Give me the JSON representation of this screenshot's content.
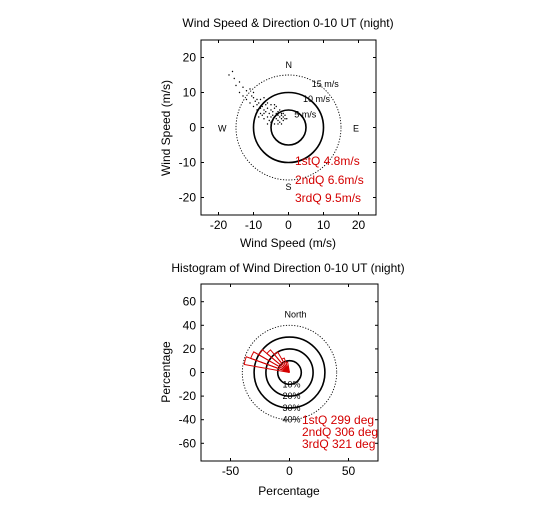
{
  "chart_data": [
    {
      "type": "scatter",
      "title": "Wind Speed & Direction 0-10 UT (night)",
      "xlabel": "Wind Speed (m/s)",
      "ylabel": "Wind Speed (m/s)",
      "xlim": [
        -25,
        25
      ],
      "ylim": [
        -25,
        25
      ],
      "xticks": [
        -20,
        -10,
        0,
        10,
        20
      ],
      "yticks": [
        -20,
        -10,
        0,
        10,
        20
      ],
      "compass": [
        "N",
        "E",
        "S",
        "W"
      ],
      "rings": [
        {
          "radius": 5,
          "label": "5 m/s",
          "style": "solid"
        },
        {
          "radius": 10,
          "label": "10 m/s",
          "style": "solid"
        },
        {
          "radius": 15,
          "label": "15 m/s",
          "style": "dotted"
        }
      ],
      "quartiles": [
        "1stQ 4.8m/s",
        "2ndQ 6.6m/s",
        "3rdQ 9.5m/s"
      ],
      "points": [
        [
          -16,
          16
        ],
        [
          -15.5,
          14
        ],
        [
          -14,
          13
        ],
        [
          -13,
          11.5
        ],
        [
          -12,
          10.5
        ],
        [
          -11,
          11
        ],
        [
          -10.5,
          9
        ],
        [
          -10,
          8.5
        ],
        [
          -9.5,
          7.5
        ],
        [
          -9,
          8
        ],
        [
          -9,
          6.5
        ],
        [
          -8.5,
          7
        ],
        [
          -8,
          5.5
        ],
        [
          -8,
          4
        ],
        [
          -7.5,
          6
        ],
        [
          -7.5,
          3.5
        ],
        [
          -7,
          5
        ],
        [
          -7,
          2.5
        ],
        [
          -6.5,
          4.5
        ],
        [
          -6.5,
          6.5
        ],
        [
          -6,
          3
        ],
        [
          -6,
          5.5
        ],
        [
          -5.5,
          2
        ],
        [
          -5.5,
          4
        ],
        [
          -5,
          5
        ],
        [
          -5,
          3
        ],
        [
          -5,
          1.5
        ],
        [
          -4.5,
          4.5
        ],
        [
          -4.5,
          3.5
        ],
        [
          -4.5,
          2
        ],
        [
          -4,
          3
        ],
        [
          -4,
          5.5
        ],
        [
          -4,
          1
        ],
        [
          -3.5,
          4
        ],
        [
          -3.5,
          2.5
        ],
        [
          -3.5,
          6
        ],
        [
          -3,
          3.5
        ],
        [
          -3,
          2
        ],
        [
          -3,
          4.5
        ],
        [
          -2.5,
          3
        ],
        [
          -2.5,
          1.5
        ],
        [
          -2.5,
          5
        ],
        [
          -2,
          4
        ],
        [
          -2,
          2.5
        ],
        [
          -2,
          3.5
        ],
        [
          -1.5,
          3
        ],
        [
          -1.5,
          2
        ],
        [
          -1,
          2.5
        ],
        [
          -1,
          3.5
        ],
        [
          -0.5,
          2.5
        ],
        [
          -6,
          7
        ],
        [
          -8,
          8
        ],
        [
          -10,
          10
        ],
        [
          -12,
          8
        ],
        [
          -7,
          8.5
        ],
        [
          -5,
          6.5
        ],
        [
          -9,
          5
        ],
        [
          -11,
          7
        ],
        [
          -3,
          1
        ],
        [
          -4,
          6.5
        ],
        [
          -6,
          1
        ],
        [
          -2,
          1
        ],
        [
          -1.5,
          4
        ],
        [
          -8.5,
          3
        ],
        [
          -14,
          10
        ],
        [
          -15,
          12
        ],
        [
          -13,
          9
        ],
        [
          -17,
          15
        ],
        [
          -10,
          6
        ],
        [
          -7,
          4
        ]
      ]
    },
    {
      "type": "rose",
      "title": "Histogram of Wind Direction 0-10 UT (night)",
      "xlabel": "Percentage",
      "ylabel": "Percentage",
      "xlim": [
        -75,
        75
      ],
      "ylim": [
        -75,
        75
      ],
      "xticks": [
        -50,
        0,
        50
      ],
      "yticks": [
        -60,
        -40,
        -20,
        0,
        20,
        40,
        60
      ],
      "north_label": "North",
      "rings": [
        {
          "radius": 10,
          "label": "10%",
          "style": "solid"
        },
        {
          "radius": 20,
          "label": "20%",
          "style": "solid"
        },
        {
          "radius": 30,
          "label": "30%",
          "style": "solid"
        },
        {
          "radius": 40,
          "label": "40%",
          "style": "dotted"
        }
      ],
      "quartiles": [
        "1stQ 299 deg",
        "2ndQ 306 deg",
        "3rdQ 321 deg"
      ],
      "sectors": [
        {
          "dir_from": 280,
          "dir_to": 290,
          "value": 39
        },
        {
          "dir_from": 290,
          "dir_to": 300,
          "value": 35
        },
        {
          "dir_from": 300,
          "dir_to": 310,
          "value": 30
        },
        {
          "dir_from": 310,
          "dir_to": 320,
          "value": 25
        },
        {
          "dir_from": 320,
          "dir_to": 330,
          "value": 20
        },
        {
          "dir_from": 330,
          "dir_to": 340,
          "value": 13
        },
        {
          "dir_from": 340,
          "dir_to": 350,
          "value": 9
        }
      ],
      "colors": {
        "sector": "#d40000",
        "text_red": "#d40000"
      }
    }
  ]
}
